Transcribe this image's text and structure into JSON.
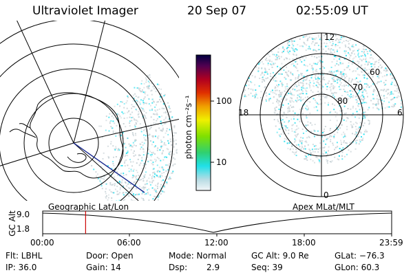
{
  "header": {
    "instrument": "Ultraviolet Imager",
    "date": "20 Sep 07",
    "time": "02:55:09 UT"
  },
  "colorbar": {
    "unit_label": "photon cm⁻²s⁻¹",
    "ticks": [
      "100",
      "10"
    ]
  },
  "geo_panel": {
    "label": "Geographic Lat/Lon"
  },
  "apex_panel": {
    "label": "Apex MLat/MLT",
    "mlt_labels": {
      "top": "12",
      "left": "18",
      "right": "6",
      "bottom": "0"
    },
    "lat_labels": [
      "60",
      "70",
      "80"
    ]
  },
  "timeline": {
    "ylabel": "GC Alt",
    "ticks_y": [
      "9.0",
      "1.8"
    ],
    "ticks_x": [
      "00:00",
      "06:00",
      "12:00",
      "18:00",
      "23:59"
    ],
    "marker_fraction": 0.123
  },
  "status": {
    "row1": {
      "flt": "Flt: LBHL",
      "door": "Door: Open",
      "mode": "Mode: Normal",
      "gcalt": "GC Alt: 9.0 Re",
      "glat": "GLat: −76.3"
    },
    "row2": {
      "ip": "IP: 36.0",
      "gain": "Gain: 14",
      "dsp_label": "Dsp:",
      "dsp_value": "2.9",
      "seq": "Seq: 39",
      "glon": "GLon:  60.3"
    }
  },
  "colors": {
    "aurora": "#28e0f0",
    "haze": "#c8d2d6",
    "marker": "#cc0000"
  }
}
